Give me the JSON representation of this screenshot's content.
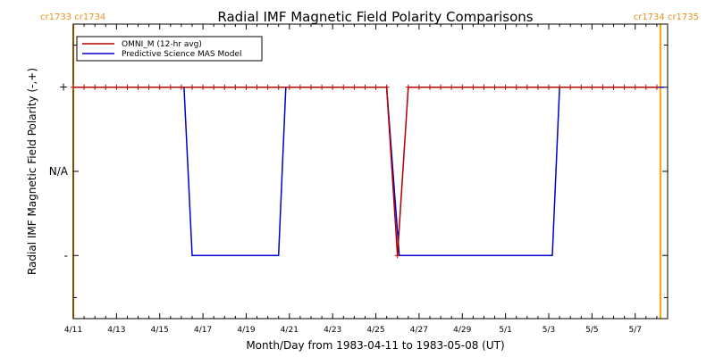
{
  "chart_data": {
    "type": "line",
    "title": "Radial IMF Magnetic Field Polarity Comparisons",
    "xlabel": "Month/Day from 1983-04-11 to 1983-05-08 (UT)",
    "ylabel": "Radial IMF Magnetic Field Polarity (-,+)",
    "x_range": [
      "1983-04-11T00:00",
      "1983-05-08T12:00"
    ],
    "y_categories": [
      "-",
      "N/A",
      "+"
    ],
    "ylim": [
      -1.75,
      1.75
    ],
    "x_tick_labels": [
      {
        "date": "1983-04-11",
        "label": "4/11"
      },
      {
        "date": "1983-04-13",
        "label": "4/13"
      },
      {
        "date": "1983-04-15",
        "label": "4/15"
      },
      {
        "date": "1983-04-17",
        "label": "4/17"
      },
      {
        "date": "1983-04-19",
        "label": "4/19"
      },
      {
        "date": "1983-04-21",
        "label": "4/21"
      },
      {
        "date": "1983-04-23",
        "label": "4/23"
      },
      {
        "date": "1983-04-25",
        "label": "4/25"
      },
      {
        "date": "1983-04-27",
        "label": "4/27"
      },
      {
        "date": "1983-04-29",
        "label": "4/29"
      },
      {
        "date": "1983-05-01",
        "label": "5/1"
      },
      {
        "date": "1983-05-03",
        "label": "5/3"
      },
      {
        "date": "1983-05-05",
        "label": "5/5"
      },
      {
        "date": "1983-05-07",
        "label": "5/7"
      }
    ],
    "y_tick_labels": [
      {
        "value": 1,
        "label": "+"
      },
      {
        "value": 0,
        "label": "N/A"
      },
      {
        "value": -1,
        "label": "-"
      }
    ],
    "carrington_markers": [
      {
        "date": "1983-04-11T00:00",
        "color": "#ffa500",
        "labels": [
          "cr1733",
          "cr1734"
        ]
      },
      {
        "date": "1983-05-08T04:00",
        "color": "#ffa500",
        "labels": [
          "cr1734",
          "cr1735"
        ]
      }
    ],
    "legend": {
      "position": "top-left",
      "entries": [
        "OMNI_M (12-hr avg)",
        "Predictive Science MAS Model"
      ]
    },
    "series": [
      {
        "name": "OMNI_M (12-hr avg)",
        "color": "#b00000",
        "marker": "+",
        "points": [
          [
            "1983-04-11T00:00",
            1
          ],
          [
            "1983-04-11T12:00",
            1
          ],
          [
            "1983-04-12T00:00",
            1
          ],
          [
            "1983-04-12T12:00",
            1
          ],
          [
            "1983-04-13T00:00",
            1
          ],
          [
            "1983-04-13T12:00",
            1
          ],
          [
            "1983-04-14T00:00",
            1
          ],
          [
            "1983-04-14T12:00",
            1
          ],
          [
            "1983-04-15T00:00",
            1
          ],
          [
            "1983-04-15T12:00",
            1
          ],
          [
            "1983-04-16T00:00",
            1
          ],
          [
            "1983-04-16T12:00",
            1
          ],
          [
            "1983-04-17T00:00",
            1
          ],
          [
            "1983-04-17T12:00",
            1
          ],
          [
            "1983-04-18T00:00",
            1
          ],
          [
            "1983-04-18T12:00",
            1
          ],
          [
            "1983-04-19T00:00",
            1
          ],
          [
            "1983-04-19T12:00",
            1
          ],
          [
            "1983-04-20T00:00",
            1
          ],
          [
            "1983-04-20T12:00",
            1
          ],
          [
            "1983-04-21T00:00",
            1
          ],
          [
            "1983-04-21T12:00",
            1
          ],
          [
            "1983-04-22T00:00",
            1
          ],
          [
            "1983-04-22T12:00",
            1
          ],
          [
            "1983-04-23T00:00",
            1
          ],
          [
            "1983-04-23T12:00",
            1
          ],
          [
            "1983-04-24T00:00",
            1
          ],
          [
            "1983-04-24T12:00",
            1
          ],
          [
            "1983-04-25T00:00",
            1
          ],
          [
            "1983-04-25T12:00",
            1
          ],
          [
            "1983-04-26T00:00",
            -1
          ],
          [
            "1983-04-26T12:00",
            1
          ],
          [
            "1983-04-27T00:00",
            1
          ],
          [
            "1983-04-27T12:00",
            1
          ],
          [
            "1983-04-28T00:00",
            1
          ],
          [
            "1983-04-28T12:00",
            1
          ],
          [
            "1983-04-29T00:00",
            1
          ],
          [
            "1983-04-29T12:00",
            1
          ],
          [
            "1983-04-30T00:00",
            1
          ],
          [
            "1983-04-30T12:00",
            1
          ],
          [
            "1983-05-01T00:00",
            1
          ],
          [
            "1983-05-01T12:00",
            1
          ],
          [
            "1983-05-02T00:00",
            1
          ],
          [
            "1983-05-02T12:00",
            1
          ],
          [
            "1983-05-03T00:00",
            1
          ],
          [
            "1983-05-03T12:00",
            1
          ],
          [
            "1983-05-04T00:00",
            1
          ],
          [
            "1983-05-04T12:00",
            1
          ],
          [
            "1983-05-05T00:00",
            1
          ],
          [
            "1983-05-05T12:00",
            1
          ],
          [
            "1983-05-06T00:00",
            1
          ],
          [
            "1983-05-06T12:00",
            1
          ],
          [
            "1983-05-07T00:00",
            1
          ],
          [
            "1983-05-07T12:00",
            1
          ],
          [
            "1983-05-08T00:00",
            1
          ]
        ]
      },
      {
        "name": "Predictive Science MAS Model",
        "color": "#0000cc",
        "marker": "none",
        "points": [
          [
            "1983-04-11T00:00",
            1
          ],
          [
            "1983-04-16T03:00",
            1
          ],
          [
            "1983-04-16T12:00",
            -1
          ],
          [
            "1983-04-20T12:00",
            -1
          ],
          [
            "1983-04-20T20:00",
            1
          ],
          [
            "1983-04-25T12:00",
            1
          ],
          [
            "1983-04-26T02:00",
            -1
          ],
          [
            "1983-04-26T04:00",
            -1
          ],
          [
            "1983-04-26T12:00",
            -1
          ],
          [
            "1983-05-03T04:00",
            -1
          ],
          [
            "1983-05-03T12:00",
            1
          ],
          [
            "1983-05-08T08:00",
            1
          ]
        ]
      }
    ]
  }
}
